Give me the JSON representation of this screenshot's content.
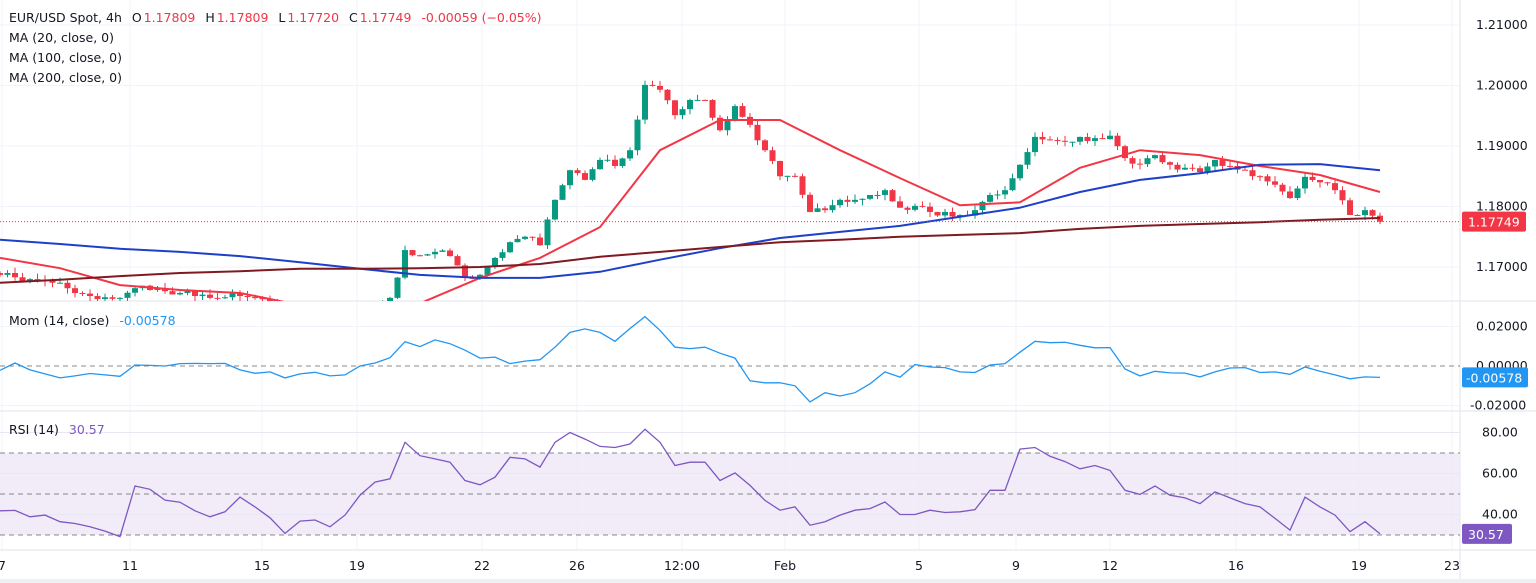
{
  "header": {
    "symbol": "EUR/USD Spot, 4h",
    "o_label": "O",
    "o": "1.17809",
    "h_label": "H",
    "h": "1.17809",
    "l_label": "L",
    "l": "1.17720",
    "c_label": "C",
    "c": "1.17749",
    "change": "-0.00059 (−0.05%)"
  },
  "indicators": {
    "ma20": "MA (20, close, 0)",
    "ma100": "MA (100, close, 0)",
    "ma200": "MA (200, close, 0)",
    "mom_label": "Mom (14, close)",
    "mom_value": "-0.00578",
    "rsi_label": "RSI (14)",
    "rsi_value": "30.57"
  },
  "colors": {
    "up": "#089981",
    "down": "#f23645",
    "ma20": "#f23645",
    "ma100": "#1e40c8",
    "ma200": "#7f1a22",
    "mom": "#2196f3",
    "rsi": "#7e57c2",
    "rsi_band": "#ede7f6"
  },
  "chart_data": [
    {
      "type": "candlestick",
      "title": "EUR/USD Spot, 4h",
      "ylim": [
        1.16,
        1.214
      ],
      "y_ticks": [
        "1.21000",
        "1.20000",
        "1.19000",
        "1.18000",
        "1.17000"
      ],
      "x_ticks": [
        "7",
        "11",
        "15",
        "19",
        "22",
        "26",
        "12:00",
        "Feb",
        "5",
        "9",
        "12",
        "16",
        "19",
        "23"
      ],
      "last_price": "1.17749",
      "grid": true,
      "closes": [
        1.1687,
        1.1683,
        1.168,
        1.1677,
        1.1674,
        1.1657,
        1.1652,
        1.165,
        1.1649,
        1.1665,
        1.1662,
        1.166,
        1.1657,
        1.1652,
        1.1649,
        1.165,
        1.1652,
        1.165,
        1.164,
        1.1635,
        1.1631,
        1.1628,
        1.163,
        1.1631,
        1.1635,
        1.1638,
        1.1649,
        1.1728,
        1.1719,
        1.1725,
        1.1718,
        1.1682,
        1.1687,
        1.1715,
        1.1741,
        1.175,
        1.1736,
        1.1811,
        1.186,
        1.1844,
        1.1877,
        1.1867,
        1.1893,
        1.2001,
        1.1993,
        1.1951,
        1.1976,
        1.1976,
        1.1926,
        1.1966,
        1.1935,
        1.1893,
        1.185,
        1.185,
        1.1791,
        1.1794,
        1.1811,
        1.1811,
        1.1819,
        1.1827,
        1.1798,
        1.1801,
        1.1791,
        1.1791,
        1.1786,
        1.1794,
        1.1819,
        1.1827,
        1.1869,
        1.1915,
        1.191,
        1.1907,
        1.1915,
        1.1913,
        1.1917,
        1.188,
        1.187,
        1.1885,
        1.1869,
        1.1864,
        1.1857,
        1.1877,
        1.1867,
        1.186,
        1.185,
        1.1836,
        1.1814,
        1.1849,
        1.184,
        1.1827,
        1.1786,
        1.1794,
        1.17749
      ],
      "series": [
        {
          "name": "MA (20, close, 0)",
          "values": [
            1.1715,
            1.1698,
            1.167,
            1.1662,
            1.1657,
            1.1637,
            1.1629,
            1.164,
            1.1682,
            1.1715,
            1.1766,
            1.1893,
            1.1943,
            1.1943,
            1.1893,
            1.1847,
            1.1802,
            1.1807,
            1.1864,
            1.1893,
            1.1885,
            1.1867,
            1.1852,
            1.1824
          ]
        },
        {
          "name": "MA (100, close, 0)",
          "values": [
            1.1745,
            1.1738,
            1.173,
            1.1725,
            1.1718,
            1.1708,
            1.1697,
            1.1687,
            1.1682,
            1.1682,
            1.1692,
            1.1712,
            1.1731,
            1.1748,
            1.1758,
            1.1768,
            1.1783,
            1.1798,
            1.1824,
            1.1844,
            1.1855,
            1.1869,
            1.187,
            1.186
          ]
        },
        {
          "name": "MA (200, close, 0)",
          "values": [
            1.1674,
            1.1679,
            1.1685,
            1.169,
            1.1693,
            1.1697,
            1.1697,
            1.1698,
            1.17,
            1.1705,
            1.1717,
            1.1725,
            1.1733,
            1.1741,
            1.1745,
            1.175,
            1.1753,
            1.1756,
            1.1763,
            1.1768,
            1.1771,
            1.1774,
            1.1778,
            1.1781
          ]
        }
      ]
    },
    {
      "type": "line",
      "title": "Mom (14, close)",
      "ylim": [
        -0.0225,
        0.032
      ],
      "y_ticks": [
        "0.02000",
        "0.00000",
        "-0.02000"
      ],
      "last_value": "-0.00578",
      "values": [
        -0.0022,
        0.0015,
        -0.002,
        -0.004,
        -0.006,
        -0.005,
        -0.0038,
        -0.0045,
        -0.0052,
        0.0005,
        0.0003,
        0.0,
        0.0012,
        0.0013,
        0.0012,
        0.0013,
        -0.002,
        -0.0037,
        -0.003,
        -0.006,
        -0.004,
        -0.0032,
        -0.005,
        -0.0045,
        0.0,
        0.0015,
        0.0042,
        0.0123,
        0.0098,
        0.0132,
        0.0113,
        0.008,
        0.004,
        0.0045,
        0.0012,
        0.0025,
        0.0032,
        0.0095,
        0.017,
        0.0188,
        0.017,
        0.0125,
        0.019,
        0.025,
        0.018,
        0.0095,
        0.0088,
        0.0095,
        0.0065,
        0.004,
        -0.0075,
        -0.0085,
        -0.0085,
        -0.01,
        -0.0182,
        -0.0135,
        -0.0152,
        -0.0135,
        -0.009,
        -0.003,
        -0.0056,
        0.0007,
        -0.0005,
        -0.0008,
        -0.003,
        -0.0033,
        0.0005,
        0.0012,
        0.007,
        0.0125,
        0.0118,
        0.012,
        0.0105,
        0.0092,
        0.0093,
        -0.0015,
        -0.005,
        -0.0027,
        -0.0035,
        -0.0036,
        -0.0055,
        -0.003,
        -0.001,
        -0.0008,
        -0.0033,
        -0.003,
        -0.0042,
        -0.0005,
        -0.0027,
        -0.0045,
        -0.0065,
        -0.0055,
        -0.00578
      ]
    },
    {
      "type": "line",
      "title": "RSI (14)",
      "ylim": [
        25,
        90
      ],
      "y_ticks": [
        "80.00",
        "60.00",
        "40.00"
      ],
      "bands": [
        70,
        50,
        30
      ],
      "last_value": "30.57",
      "values": [
        41.8,
        42,
        38.9,
        39.7,
        36.5,
        35.6,
        34,
        31.9,
        29.2,
        53.9,
        52.3,
        47,
        46,
        41.8,
        38.9,
        41.3,
        48.5,
        43.7,
        38.4,
        30.8,
        36.8,
        37.3,
        34,
        39.7,
        49.4,
        55.8,
        57.4,
        75.2,
        68.7,
        67.1,
        65.5,
        56.6,
        54.5,
        58.2,
        67.9,
        67.1,
        63.1,
        75.2,
        80,
        76.8,
        73.2,
        72.7,
        74.4,
        81.6,
        75.2,
        63.9,
        65.5,
        65.5,
        56.6,
        60.3,
        54.2,
        46.9,
        42.1,
        43.7,
        34.8,
        36.5,
        39.7,
        42.1,
        42.9,
        46.1,
        40,
        40,
        42.1,
        41,
        41.3,
        42.4,
        51.8,
        51.8,
        71.9,
        72.7,
        68.4,
        65.8,
        62.3,
        63.9,
        61.5,
        51.8,
        49.8,
        53.9,
        49.4,
        48.1,
        45.3,
        51,
        48.1,
        45.3,
        43.7,
        38.1,
        32.4,
        48.5,
        43.7,
        39.7,
        31.6,
        36.5,
        30.57
      ]
    }
  ]
}
